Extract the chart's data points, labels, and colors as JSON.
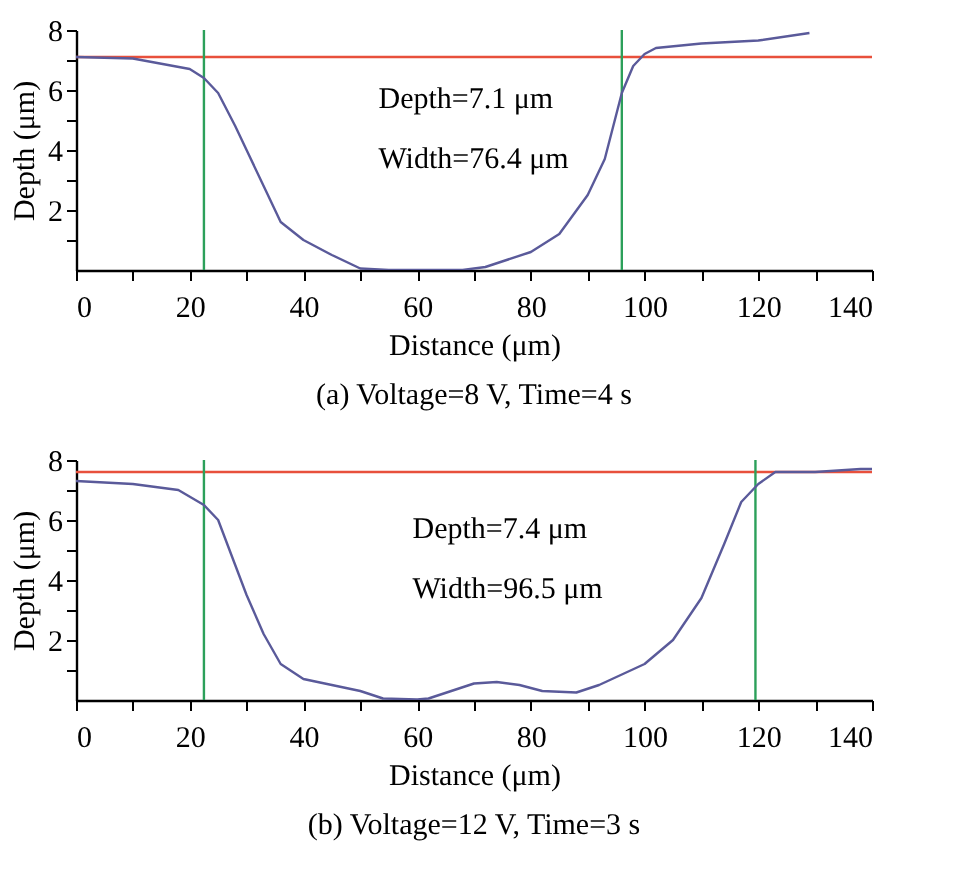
{
  "chart_data": [
    {
      "type": "line",
      "title": "(a) Voltage=8 V, Time=4 s",
      "xlabel": "Distance (μm)",
      "ylabel": "Depth (μm)",
      "annotations": [
        "Depth=7.1 μm",
        "Width=76.4 μm"
      ],
      "xlim": [
        0,
        140
      ],
      "ylim": [
        0,
        8
      ],
      "xticks": [
        0,
        {
          "value": 10,
          "label": null
        },
        20,
        {
          "value": 30,
          "label": null
        },
        40,
        {
          "value": 50,
          "label": null
        },
        60,
        {
          "value": 70,
          "label": null
        },
        80,
        {
          "value": 90,
          "label": null
        },
        100,
        {
          "value": 110,
          "label": null
        },
        120,
        {
          "value": 130,
          "label": null
        },
        140
      ],
      "yticks": [
        {
          "value": 1,
          "label": null
        },
        2,
        {
          "value": 3,
          "label": null
        },
        4,
        {
          "value": 5,
          "label": null
        },
        6,
        {
          "value": 7,
          "label": null
        },
        8
      ],
      "grid": false,
      "ref_lines": [
        {
          "axis": "y",
          "value": 7.1,
          "color": "#e8503c"
        },
        {
          "axis": "x",
          "value": 22.5,
          "color": "#2ca05a"
        },
        {
          "axis": "x",
          "value": 96,
          "color": "#2ca05a"
        }
      ],
      "x": [
        0,
        10,
        20,
        22.5,
        25,
        28,
        30,
        33,
        36,
        40,
        45,
        50,
        55,
        60,
        68,
        72,
        80,
        85,
        90,
        93,
        96,
        98,
        100,
        102,
        110,
        120,
        129
      ],
      "series": [
        {
          "color": "#5a5a9a",
          "values": [
            7.1,
            7.05,
            6.7,
            6.4,
            5.9,
            4.8,
            4.0,
            2.8,
            1.6,
            1.0,
            0.5,
            0.05,
            0,
            0,
            0,
            0.1,
            0.6,
            1.2,
            2.5,
            3.7,
            5.9,
            6.8,
            7.2,
            7.4,
            7.55,
            7.65,
            7.9
          ]
        }
      ]
    },
    {
      "type": "line",
      "title": "(b) Voltage=12 V, Time=3 s",
      "xlabel": "Distance (μm)",
      "ylabel": "Depth (μm)",
      "annotations": [
        "Depth=7.4 μm",
        "Width=96.5 μm"
      ],
      "xlim": [
        0,
        140
      ],
      "ylim": [
        0,
        8
      ],
      "xticks": [
        0,
        {
          "value": 10,
          "label": null
        },
        20,
        {
          "value": 30,
          "label": null
        },
        40,
        {
          "value": 50,
          "label": null
        },
        60,
        {
          "value": 70,
          "label": null
        },
        80,
        {
          "value": 90,
          "label": null
        },
        100,
        {
          "value": 110,
          "label": null
        },
        120,
        {
          "value": 130,
          "label": null
        },
        140
      ],
      "yticks": [
        {
          "value": 1,
          "label": null
        },
        2,
        {
          "value": 3,
          "label": null
        },
        4,
        {
          "value": 5,
          "label": null
        },
        6,
        {
          "value": 7,
          "label": null
        },
        8
      ],
      "grid": false,
      "ref_lines": [
        {
          "axis": "y",
          "value": 7.6,
          "color": "#e8503c"
        },
        {
          "axis": "x",
          "value": 22.5,
          "color": "#2ca05a"
        },
        {
          "axis": "x",
          "value": 119.5,
          "color": "#2ca05a"
        }
      ],
      "x": [
        0,
        10,
        18,
        22.5,
        25,
        28,
        30,
        33,
        36,
        40,
        45,
        50,
        54,
        60,
        62,
        66,
        70,
        74,
        78,
        82,
        88,
        92,
        100,
        105,
        110,
        114,
        117,
        120,
        123,
        130,
        138,
        140
      ],
      "series": [
        {
          "color": "#5a5a9a",
          "values": [
            7.3,
            7.2,
            7.0,
            6.5,
            6.0,
            4.5,
            3.5,
            2.2,
            1.2,
            0.7,
            0.5,
            0.3,
            0.05,
            0.02,
            0.05,
            0.3,
            0.55,
            0.6,
            0.5,
            0.3,
            0.25,
            0.5,
            1.2,
            2.0,
            3.4,
            5.2,
            6.6,
            7.2,
            7.6,
            7.6,
            7.7,
            7.7
          ]
        }
      ]
    }
  ]
}
